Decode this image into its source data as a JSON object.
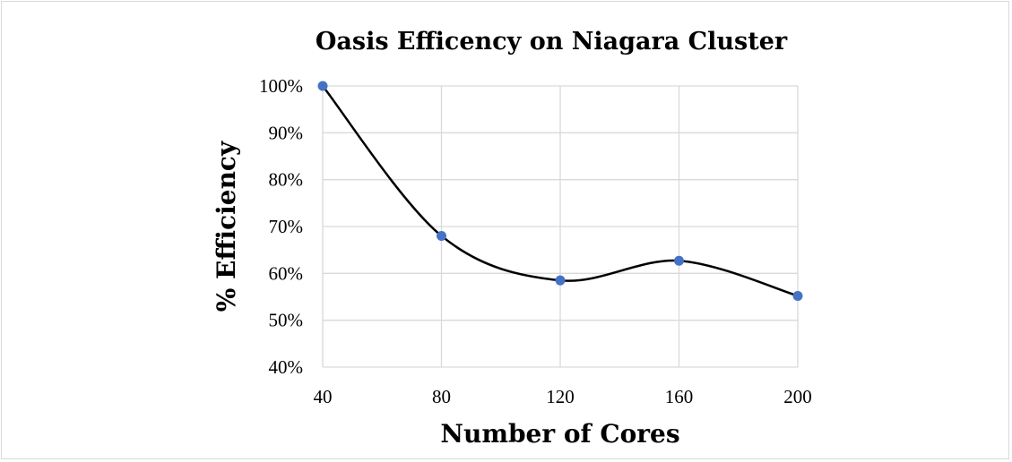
{
  "chart_data": {
    "type": "line",
    "title": "Oasis Efficency on Niagara Cluster",
    "xlabel": "Number of Cores",
    "ylabel": "% Efficiency",
    "x": [
      40,
      80,
      120,
      160,
      200
    ],
    "x_tick_labels": [
      "40",
      "80",
      "120",
      "160",
      "200"
    ],
    "series": [
      {
        "name": "Efficiency",
        "values": [
          100,
          68,
          58.5,
          62.7,
          55.2
        ]
      }
    ],
    "ylim": [
      40,
      100
    ],
    "y_ticks": [
      40,
      50,
      60,
      70,
      80,
      90,
      100
    ],
    "y_tick_labels": [
      "40%",
      "50%",
      "60%",
      "70%",
      "80%",
      "90%",
      "100%"
    ],
    "grid": true,
    "smooth": true,
    "line_color": "#000000",
    "marker_color": "#4472C4",
    "grid_color": "#d9d9d9"
  }
}
